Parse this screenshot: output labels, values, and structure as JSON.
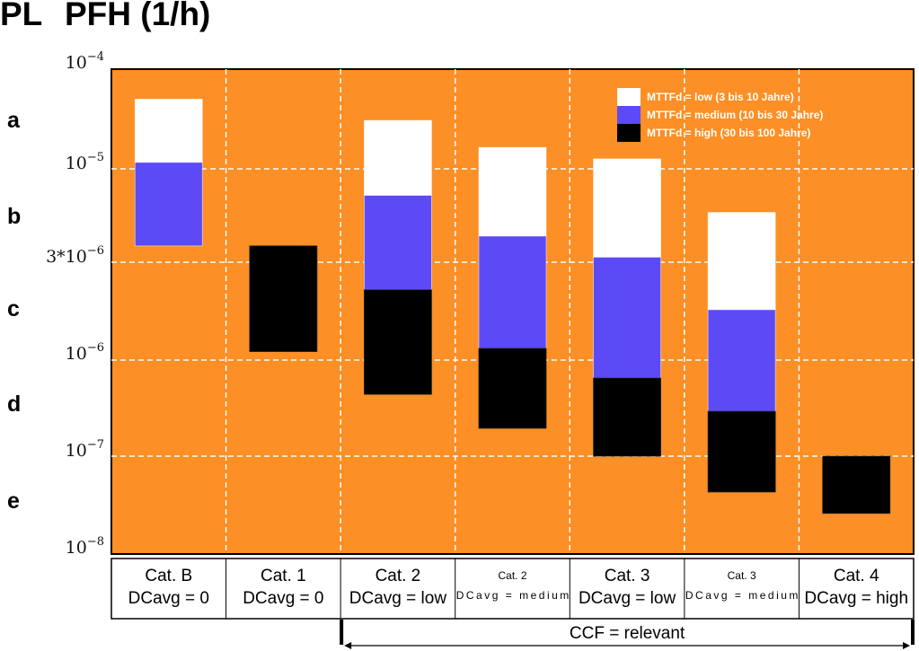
{
  "header": {
    "pl_label": "PL",
    "pfh_label": "PFH (1/h)"
  },
  "colors": {
    "background": "#FC8F25",
    "low": "#FFFFFF",
    "medium": "#5C4AF6",
    "high": "#000000",
    "grid": "#FFFFFF"
  },
  "chart_data": {
    "type": "bar",
    "subtype": "floating-stacked-range",
    "title": "PL  PFH (1/h)",
    "xlabel": "",
    "ylabel": "PFH (1/h)",
    "y_scale": "log",
    "ylim": [
      1e-08,
      0.0001
    ],
    "y_ticks": [
      {
        "value": 0.0001,
        "base": "10",
        "exp": "−4",
        "prefix": ""
      },
      {
        "value": 1e-05,
        "base": "10",
        "exp": "−5",
        "prefix": ""
      },
      {
        "value": 3e-06,
        "base": "10",
        "exp": "−6",
        "prefix": "3*"
      },
      {
        "value": 1e-06,
        "base": "10",
        "exp": "−6",
        "prefix": ""
      },
      {
        "value": 1e-07,
        "base": "10",
        "exp": "−7",
        "prefix": ""
      },
      {
        "value": 1e-08,
        "base": "10",
        "exp": "−8",
        "prefix": ""
      }
    ],
    "performance_levels": [
      {
        "label": "a",
        "range": [
          1e-05,
          0.0001
        ]
      },
      {
        "label": "b",
        "range": [
          3e-06,
          1e-05
        ]
      },
      {
        "label": "c",
        "range": [
          1e-06,
          3e-06
        ]
      },
      {
        "label": "d",
        "range": [
          1e-07,
          1e-06
        ]
      },
      {
        "label": "e",
        "range": [
          1e-08,
          1e-07
        ]
      }
    ],
    "grid": true,
    "legend_position": "top-right",
    "legend": [
      {
        "key": "low",
        "label": "MTTFd = low (3 bis 10 Jahre)"
      },
      {
        "key": "medium",
        "label": "MTTFd = medium (10 bis 30 Jahre)"
      },
      {
        "key": "high",
        "label": "MTTFd = high (30 bis 100 Jahre)"
      }
    ],
    "categories": [
      {
        "line1": "Cat. B",
        "line2": "DCavg = 0",
        "small": false,
        "segments": [
          {
            "key": "low",
            "from": 1.16e-05,
            "to": 5e-05
          },
          {
            "key": "medium",
            "from": 3.7e-06,
            "to": 1.16e-05
          }
        ]
      },
      {
        "line1": "Cat. 1",
        "line2": "DCavg = 0",
        "small": false,
        "segments": [
          {
            "key": "high",
            "from": 1.1e-06,
            "to": 3.7e-06
          }
        ]
      },
      {
        "line1": "Cat. 2",
        "line2": "DCavg = low",
        "small": false,
        "segments": [
          {
            "key": "low",
            "from": 7.1e-06,
            "to": 3.06e-05
          },
          {
            "key": "medium",
            "from": 2.2e-06,
            "to": 7.1e-06
          },
          {
            "key": "high",
            "from": 4.4e-07,
            "to": 2.2e-06
          }
        ]
      },
      {
        "line1": "Cat. 2",
        "line2": "DCavg = medium",
        "small": true,
        "segments": [
          {
            "key": "low",
            "from": 4.2e-06,
            "to": 1.64e-05
          },
          {
            "key": "medium",
            "from": 1.14e-06,
            "to": 4.2e-06
          },
          {
            "key": "high",
            "from": 1.95e-07,
            "to": 1.14e-06
          }
        ]
      },
      {
        "line1": "Cat. 3",
        "line2": "DCavg = low",
        "small": false,
        "segments": [
          {
            "key": "low",
            "from": 3.2e-06,
            "to": 1.26e-05
          },
          {
            "key": "medium",
            "from": 6.5e-07,
            "to": 3.2e-06
          },
          {
            "key": "high",
            "from": 1e-07,
            "to": 6.5e-07
          }
        ]
      },
      {
        "line1": "Cat. 3",
        "line2": "DCavg = medium",
        "small": true,
        "segments": [
          {
            "key": "low",
            "from": 1.76e-06,
            "to": 5.7e-06
          },
          {
            "key": "medium",
            "from": 2.93e-07,
            "to": 1.76e-06
          },
          {
            "key": "high",
            "from": 4.3e-08,
            "to": 2.93e-07
          }
        ]
      },
      {
        "line1": "Cat. 4",
        "line2": "DCavg = high",
        "small": false,
        "segments": [
          {
            "key": "high",
            "from": 2.6e-08,
            "to": 1e-07
          }
        ]
      }
    ],
    "annotation": {
      "text": "CCF = relevant",
      "span_from_category": 2,
      "span_to_category": 6
    }
  }
}
